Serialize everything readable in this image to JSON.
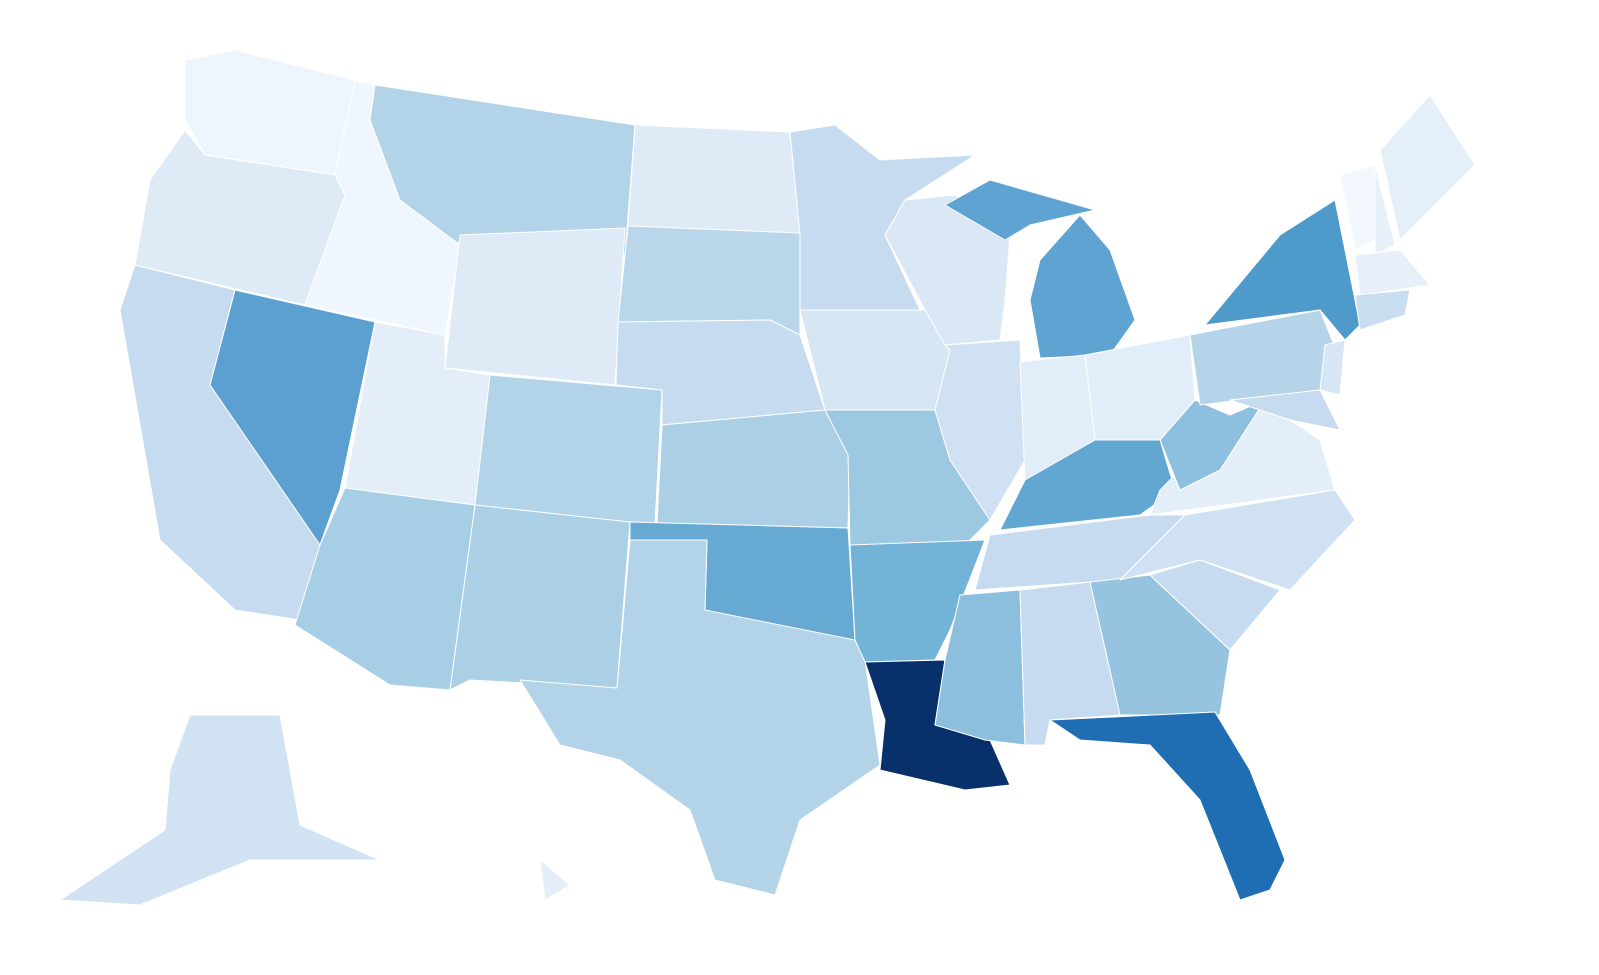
{
  "map": {
    "regions": [
      {
        "color": "#eef5fd"
      },
      {
        "color": "#deebf7"
      },
      {
        "color": "#c6dbef"
      },
      {
        "color": "#eff6fd"
      },
      {
        "color": "#5ba0d0"
      },
      {
        "color": "#b3d3e8"
      },
      {
        "color": "#deebf7"
      },
      {
        "color": "#e3eef8"
      },
      {
        "color": "#a6cee4"
      },
      {
        "color": "#b3d3e8"
      },
      {
        "color": "#abcfe5"
      },
      {
        "color": "#deebf7"
      },
      {
        "color": "#b9d6ea"
      },
      {
        "color": "#c6dbef"
      },
      {
        "color": "#abd0e6"
      },
      {
        "color": "#66a9d3"
      },
      {
        "color": "#b3d3e8"
      },
      {
        "color": "#c6dbef"
      },
      {
        "color": "#d6e6f4"
      },
      {
        "color": "#9cc8e2"
      },
      {
        "color": "#74b3d8"
      },
      {
        "color": "#08306b"
      },
      {
        "color": "#dae8f5"
      },
      {
        "color": "#cfe1f2"
      },
      {
        "color": "#5ea3d1"
      },
      {
        "color": "#5ea3d1"
      },
      {
        "color": "#e1edf8"
      },
      {
        "color": "#e1edf8"
      },
      {
        "color": "#61a7d2"
      },
      {
        "color": "#c6dbef"
      },
      {
        "color": "#8cbfde"
      },
      {
        "color": "#c6dbef"
      },
      {
        "color": "#96c4e0"
      },
      {
        "color": "#1f6eb3"
      },
      {
        "color": "#c6dbef"
      },
      {
        "color": "#cfe1f2"
      },
      {
        "color": "#e3eef8"
      },
      {
        "color": "#8dc0de"
      },
      {
        "color": "#b6d4e9"
      },
      {
        "color": "#4e9acb"
      },
      {
        "color": "#d6e6f4"
      },
      {
        "color": "#c6dbef"
      },
      {
        "color": "#f2f8fd"
      },
      {
        "color": "#e8f1fa"
      },
      {
        "color": "#e5eff9"
      },
      {
        "color": "#e7f0fa"
      },
      {
        "color": "#c8ddf0"
      },
      {
        "color": "#d1e3f3"
      },
      {
        "color": "#e3eef8"
      }
    ]
  }
}
